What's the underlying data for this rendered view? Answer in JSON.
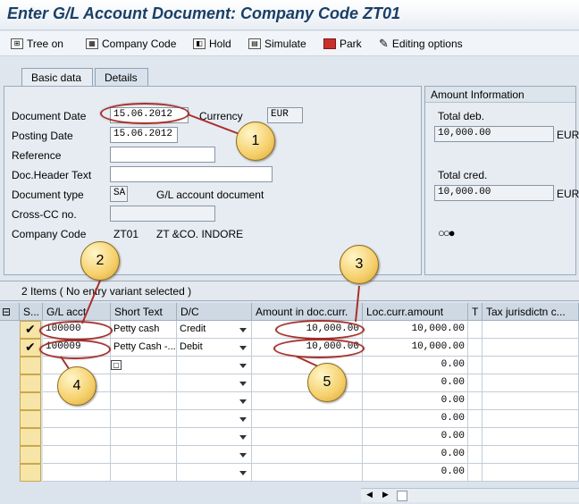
{
  "window": {
    "title": "Enter G/L Account Document: Company Code ZT01"
  },
  "toolbar": {
    "tree_on": "Tree on",
    "company_code": "Company Code",
    "hold": "Hold",
    "simulate": "Simulate",
    "park": "Park",
    "editing_options": "Editing options"
  },
  "tabs": [
    {
      "label": "Basic data"
    },
    {
      "label": "Details"
    }
  ],
  "basic_data": {
    "document_date_label": "Document Date",
    "document_date": "15.06.2012",
    "currency_label": "Currency",
    "currency": "EUR",
    "posting_date_label": "Posting Date",
    "posting_date": "15.06.2012",
    "reference_label": "Reference",
    "reference": "",
    "doc_header_label": "Doc.Header Text",
    "doc_header": "",
    "doc_type_label": "Document type",
    "doc_type": "SA",
    "doc_type_desc": "G/L account document",
    "cross_cc_label": "Cross-CC no.",
    "cross_cc": "",
    "company_code_label": "Company Code",
    "company_code": "ZT01",
    "company_name": "ZT &CO. INDORE"
  },
  "amount_info": {
    "heading": "Amount Information",
    "total_deb_label": "Total deb.",
    "total_deb": "10,000.00",
    "total_deb_cur": "EUR",
    "total_cred_label": "Total cred.",
    "total_cred": "10,000.00",
    "total_cred_cur": "EUR",
    "status_icon": "traffic-light-icon"
  },
  "items": {
    "summary": "2 Items ( No entry variant selected )",
    "columns": [
      "S...",
      "G/L acct",
      "Short Text",
      "D/C",
      "Amount in doc.curr.",
      "Loc.curr.amount",
      "T",
      "Tax jurisdictn c..."
    ],
    "rows": [
      {
        "gl": "100000",
        "text": "Petty cash",
        "dc": "Credit",
        "amount": "10,000.00",
        "loc": "10,000.00"
      },
      {
        "gl": "100009",
        "text": "Petty Cash -...",
        "dc": "Debit",
        "amount": "10,000.00",
        "loc": "10,000.00"
      },
      {
        "gl": "",
        "text": "",
        "dc": "",
        "amount": "",
        "loc": "0.00"
      },
      {
        "gl": "",
        "text": "",
        "dc": "",
        "amount": "",
        "loc": "0.00"
      },
      {
        "gl": "",
        "text": "",
        "dc": "",
        "amount": "",
        "loc": "0.00"
      },
      {
        "gl": "",
        "text": "",
        "dc": "",
        "amount": "",
        "loc": "0.00"
      },
      {
        "gl": "",
        "text": "",
        "dc": "",
        "amount": "",
        "loc": "0.00"
      },
      {
        "gl": "",
        "text": "",
        "dc": "",
        "amount": "",
        "loc": "0.00"
      },
      {
        "gl": "",
        "text": "",
        "dc": "",
        "amount": "",
        "loc": "0.00"
      }
    ]
  },
  "callouts": [
    "1",
    "2",
    "3",
    "4",
    "5"
  ],
  "colors": {
    "highlight": "#a8302a",
    "callout": "#f5cf6a",
    "title": "#1a3f66"
  }
}
